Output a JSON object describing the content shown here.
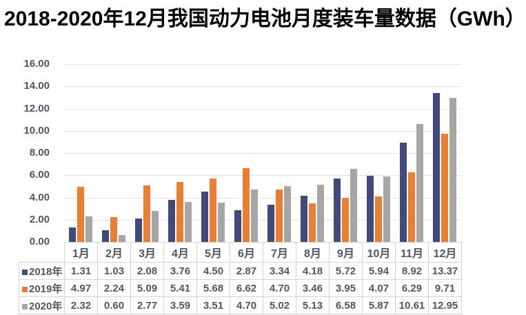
{
  "chart_data": {
    "type": "bar",
    "title": "2018-2020年12月我国动力电池月度装车量数据（GWh）",
    "categories": [
      "1月",
      "2月",
      "3月",
      "4月",
      "5月",
      "6月",
      "7月",
      "8月",
      "9月",
      "10月",
      "11月",
      "12月"
    ],
    "series": [
      {
        "name": "2018年",
        "color": "#3F4B7D",
        "values": [
          1.31,
          1.03,
          2.08,
          3.76,
          4.5,
          2.87,
          3.34,
          4.18,
          5.72,
          5.94,
          8.92,
          13.37
        ]
      },
      {
        "name": "2019年",
        "color": "#ED7D31",
        "values": [
          4.97,
          2.24,
          5.09,
          5.41,
          5.68,
          6.62,
          4.7,
          3.46,
          3.95,
          4.07,
          6.29,
          9.71
        ]
      },
      {
        "name": "2020年",
        "color": "#A6A6A6",
        "values": [
          2.32,
          0.6,
          2.77,
          3.59,
          3.51,
          4.7,
          5.02,
          5.13,
          6.58,
          5.87,
          10.61,
          12.95
        ]
      }
    ],
    "xlabel": "",
    "ylabel": "",
    "ylim": [
      0,
      16
    ],
    "ytick_labels": [
      "16.00",
      "14.00",
      "12.00",
      "10.00",
      "8.00",
      "6.00",
      "4.00",
      "2.00",
      "0.00"
    ],
    "value_format": "0.00",
    "grid": true,
    "legend_position": "data-table-left",
    "has_data_table": true
  },
  "colors": {
    "title_text": "#000000",
    "axis_text": "#4e5663",
    "gridline": "#e3e3e3",
    "table_border": "#d2d2d2",
    "background": "#ffffff"
  }
}
